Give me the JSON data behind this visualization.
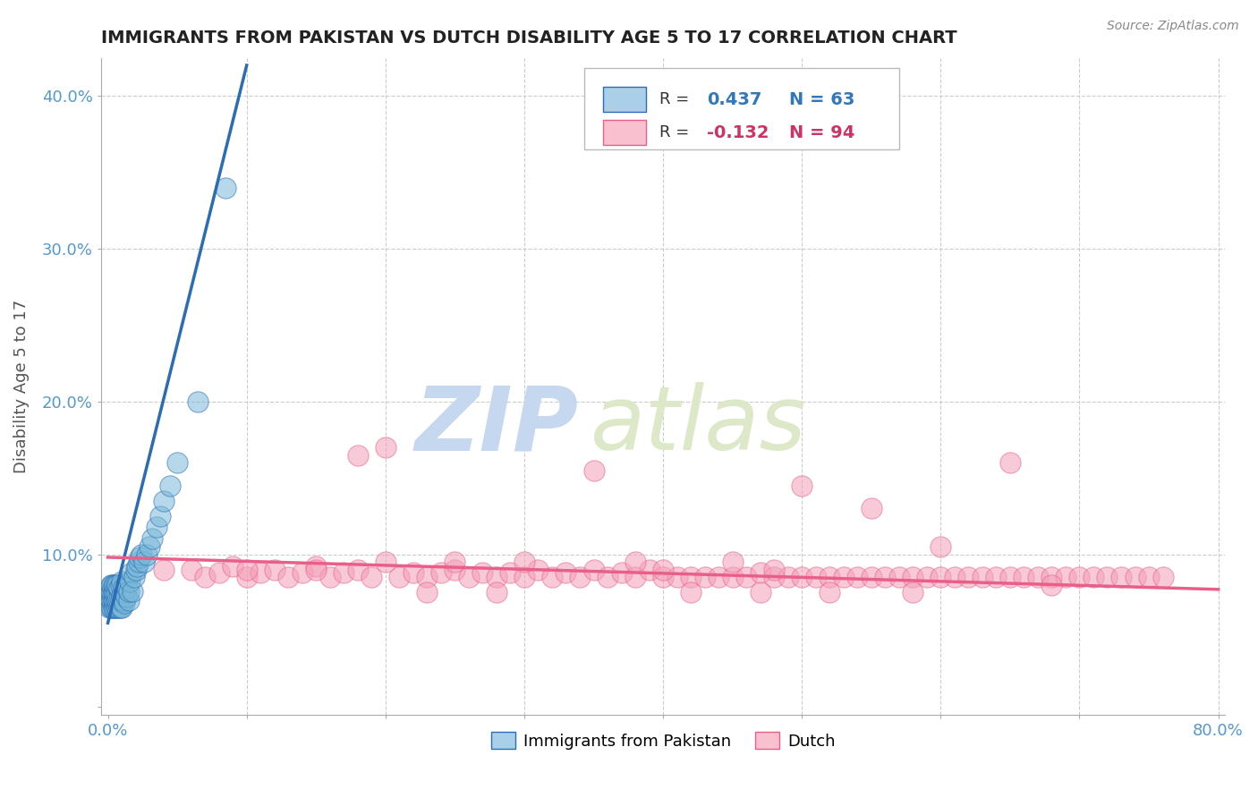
{
  "title": "IMMIGRANTS FROM PAKISTAN VS DUTCH DISABILITY AGE 5 TO 17 CORRELATION CHART",
  "source_text": "Source: ZipAtlas.com",
  "ylabel": "Disability Age 5 to 17",
  "xlim": [
    -0.005,
    0.805
  ],
  "ylim": [
    -0.005,
    0.425
  ],
  "xticks": [
    0.0,
    0.1,
    0.2,
    0.3,
    0.4,
    0.5,
    0.6,
    0.7,
    0.8
  ],
  "yticks": [
    0.0,
    0.1,
    0.2,
    0.3,
    0.4
  ],
  "blue_R": 0.437,
  "blue_N": 63,
  "pink_R": -0.132,
  "pink_N": 94,
  "blue_color": "#7ab8d9",
  "pink_color": "#f4a0b8",
  "blue_line_color": "#2a6db5",
  "pink_line_color": "#e8608a",
  "blue_color_legend": "#aacfe8",
  "pink_color_legend": "#f9c0d0",
  "watermark_zip_color": "#c5d8ef",
  "watermark_atlas_color": "#dce8c8",
  "bg_color": "#ffffff",
  "grid_color": "#cccccc",
  "title_color": "#222222",
  "axis_label_color": "#555555",
  "tick_label_color_blue": "#5599cc",
  "legend_R_color_blue": "#3377bb",
  "legend_R_color_pink": "#cc3366",
  "blue_scatter_x": [
    0.001,
    0.001,
    0.001,
    0.002,
    0.002,
    0.002,
    0.002,
    0.003,
    0.003,
    0.003,
    0.003,
    0.004,
    0.004,
    0.004,
    0.004,
    0.005,
    0.005,
    0.005,
    0.005,
    0.006,
    0.006,
    0.006,
    0.006,
    0.007,
    0.007,
    0.007,
    0.008,
    0.008,
    0.008,
    0.009,
    0.009,
    0.009,
    0.01,
    0.01,
    0.01,
    0.011,
    0.011,
    0.012,
    0.012,
    0.013,
    0.014,
    0.015,
    0.015,
    0.016,
    0.017,
    0.018,
    0.019,
    0.02,
    0.021,
    0.022,
    0.023,
    0.024,
    0.026,
    0.028,
    0.03,
    0.032,
    0.035,
    0.038,
    0.04,
    0.045,
    0.05,
    0.065,
    0.085
  ],
  "blue_scatter_y": [
    0.065,
    0.07,
    0.075,
    0.065,
    0.07,
    0.075,
    0.08,
    0.065,
    0.07,
    0.075,
    0.08,
    0.065,
    0.07,
    0.075,
    0.08,
    0.065,
    0.07,
    0.075,
    0.08,
    0.065,
    0.07,
    0.075,
    0.08,
    0.065,
    0.07,
    0.08,
    0.065,
    0.07,
    0.078,
    0.065,
    0.07,
    0.08,
    0.065,
    0.073,
    0.082,
    0.07,
    0.078,
    0.068,
    0.075,
    0.072,
    0.078,
    0.07,
    0.076,
    0.082,
    0.088,
    0.076,
    0.085,
    0.09,
    0.092,
    0.095,
    0.098,
    0.1,
    0.095,
    0.1,
    0.105,
    0.11,
    0.118,
    0.125,
    0.135,
    0.145,
    0.16,
    0.2,
    0.34
  ],
  "pink_scatter_x": [
    0.04,
    0.06,
    0.07,
    0.08,
    0.09,
    0.1,
    0.11,
    0.12,
    0.13,
    0.14,
    0.15,
    0.16,
    0.17,
    0.18,
    0.19,
    0.2,
    0.21,
    0.22,
    0.23,
    0.24,
    0.25,
    0.26,
    0.27,
    0.28,
    0.29,
    0.3,
    0.31,
    0.32,
    0.33,
    0.34,
    0.35,
    0.36,
    0.37,
    0.38,
    0.39,
    0.4,
    0.41,
    0.42,
    0.43,
    0.44,
    0.45,
    0.46,
    0.47,
    0.48,
    0.49,
    0.5,
    0.51,
    0.52,
    0.53,
    0.54,
    0.55,
    0.56,
    0.57,
    0.58,
    0.59,
    0.6,
    0.61,
    0.62,
    0.63,
    0.64,
    0.65,
    0.66,
    0.67,
    0.68,
    0.69,
    0.7,
    0.71,
    0.72,
    0.73,
    0.74,
    0.75,
    0.76,
    0.25,
    0.35,
    0.45,
    0.18,
    0.3,
    0.5,
    0.6,
    0.4,
    0.55,
    0.65,
    0.2,
    0.38,
    0.48,
    0.1,
    0.15,
    0.28,
    0.42,
    0.58,
    0.68,
    0.23,
    0.47,
    0.52
  ],
  "pink_scatter_y": [
    0.09,
    0.09,
    0.085,
    0.088,
    0.092,
    0.085,
    0.088,
    0.09,
    0.085,
    0.088,
    0.092,
    0.085,
    0.088,
    0.09,
    0.085,
    0.17,
    0.085,
    0.088,
    0.085,
    0.088,
    0.09,
    0.085,
    0.088,
    0.085,
    0.088,
    0.085,
    0.09,
    0.085,
    0.088,
    0.085,
    0.09,
    0.085,
    0.088,
    0.085,
    0.09,
    0.085,
    0.085,
    0.085,
    0.085,
    0.085,
    0.085,
    0.085,
    0.088,
    0.085,
    0.085,
    0.085,
    0.085,
    0.085,
    0.085,
    0.085,
    0.085,
    0.085,
    0.085,
    0.085,
    0.085,
    0.085,
    0.085,
    0.085,
    0.085,
    0.085,
    0.085,
    0.085,
    0.085,
    0.085,
    0.085,
    0.085,
    0.085,
    0.085,
    0.085,
    0.085,
    0.085,
    0.085,
    0.095,
    0.155,
    0.095,
    0.165,
    0.095,
    0.145,
    0.105,
    0.09,
    0.13,
    0.16,
    0.095,
    0.095,
    0.09,
    0.09,
    0.09,
    0.075,
    0.075,
    0.075,
    0.08,
    0.075,
    0.075,
    0.075
  ],
  "blue_trend_x": [
    0.0,
    0.1
  ],
  "blue_trend_y": [
    0.055,
    0.42
  ],
  "pink_trend_x": [
    0.0,
    0.8
  ],
  "pink_trend_y": [
    0.098,
    0.077
  ]
}
